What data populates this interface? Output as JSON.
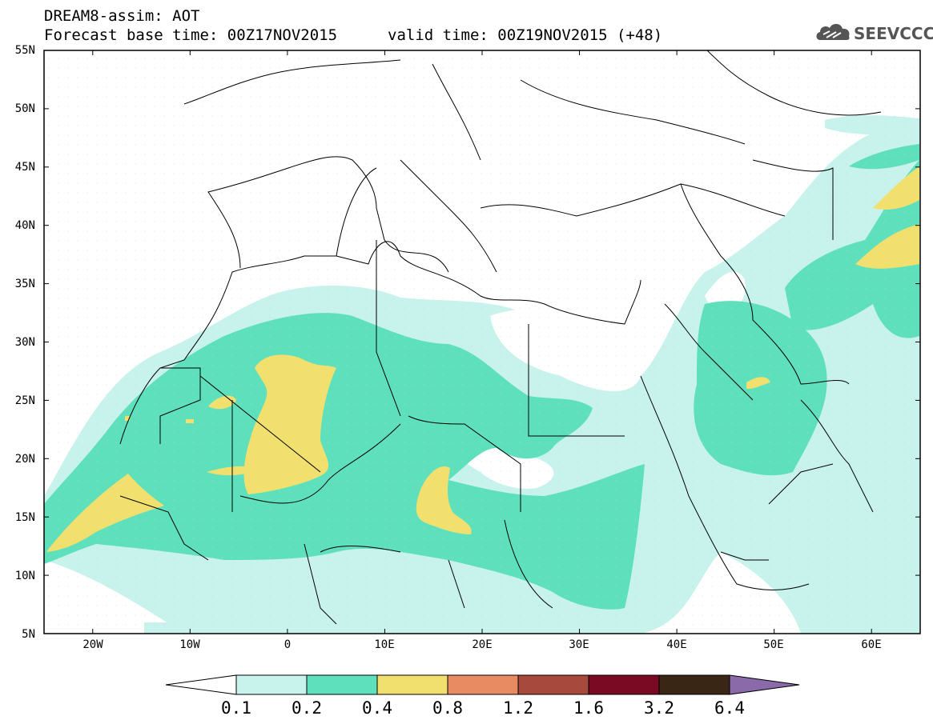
{
  "header": {
    "line1": "DREAM8-assim: AOT",
    "line2": "Forecast base time: 00Z17NOV2015",
    "valid": "valid time: 00Z19NOV2015 (+48)"
  },
  "logo": {
    "text": "SEEVCCC",
    "icon": "cloud-logo-icon"
  },
  "map": {
    "extent": {
      "lon": [
        -25,
        65
      ],
      "lat": [
        5,
        55
      ]
    },
    "lat_labels": [
      "55N",
      "50N",
      "45N",
      "40N",
      "35N",
      "30N",
      "25N",
      "20N",
      "15N",
      "10N",
      "5N"
    ],
    "lon_labels": [
      "20W",
      "10W",
      "0",
      "10E",
      "20E",
      "30E",
      "40E",
      "50E",
      "60E"
    ],
    "colors": {
      "c01": "#c8f2ec",
      "c02": "#5fe0bc",
      "c04": "#f2e06e",
      "frame": "#000000",
      "border": "#000000",
      "gridline": "#c8c8c8"
    }
  },
  "colorbar": {
    "labels": [
      "0.1",
      "0.2",
      "0.4",
      "0.8",
      "1.2",
      "1.6",
      "3.2",
      "6.4"
    ],
    "colors": [
      "#ffffff",
      "#c8f2ec",
      "#5fe0bc",
      "#f2e06e",
      "#e98b62",
      "#a8493e",
      "#7a0a24",
      "#3a2614",
      "#8a6aa8"
    ]
  }
}
